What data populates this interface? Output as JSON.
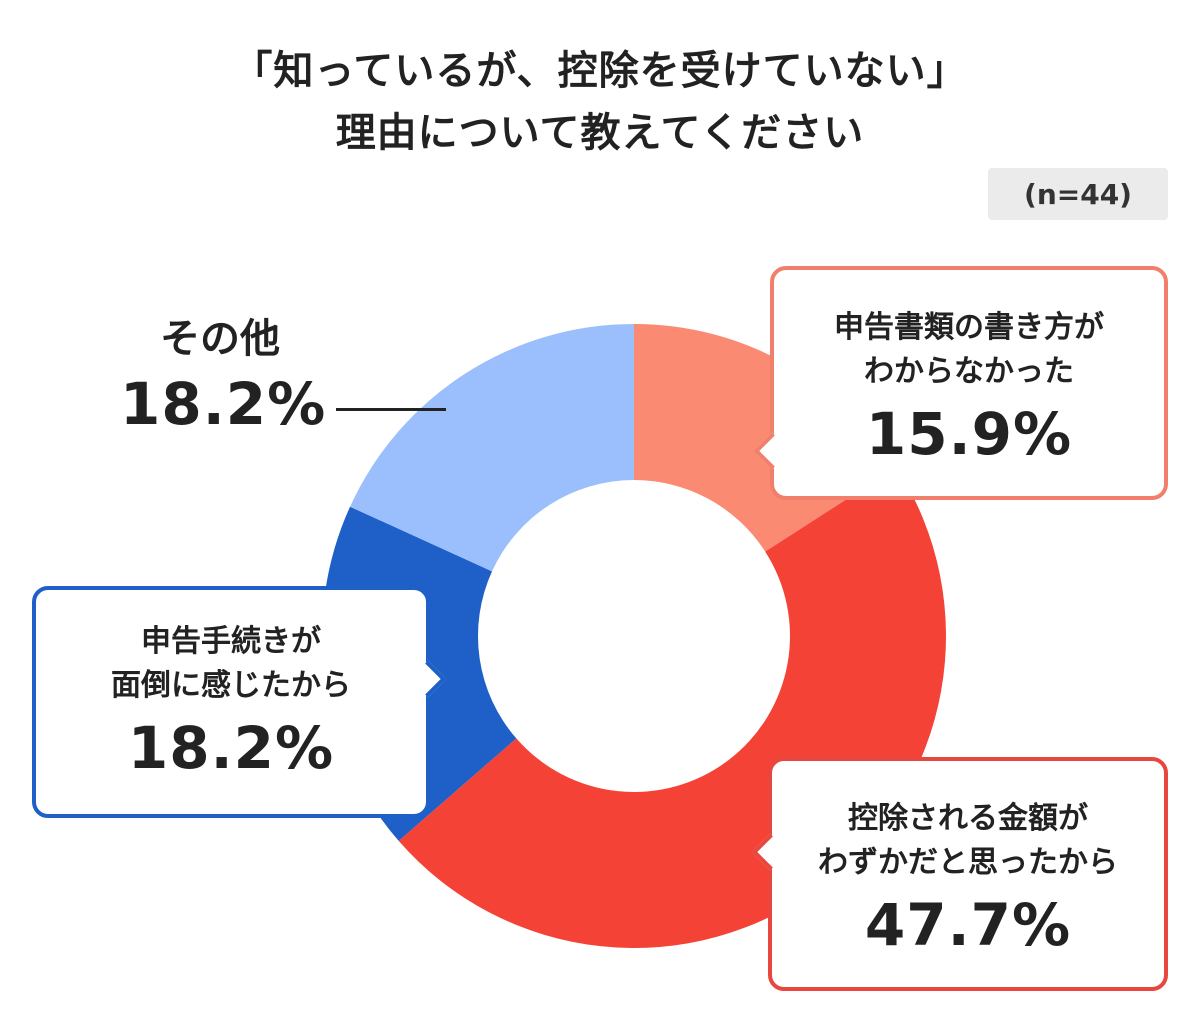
{
  "title_lines": [
    "「知っているが、控除を受けていない」",
    "理由について教えてください"
  ],
  "sample_size": "(n=44)",
  "chart_data": {
    "type": "pie",
    "title": "「知っているが、控除を受けていない」理由について教えてください",
    "slices": [
      {
        "label": "申告書類の書き方がわからなかった",
        "value": 15.9,
        "display": "15.9%",
        "color": "#fb8a72",
        "label_lines": [
          "申告書類の書き方が",
          "わからなかった"
        ]
      },
      {
        "label": "控除される金額がわずかだと思ったから",
        "value": 47.7,
        "display": "47.7%",
        "color": "#f44336",
        "label_lines": [
          "控除される金額が",
          "わずかだと思ったから"
        ]
      },
      {
        "label": "申告手続きが面倒に感じたから",
        "value": 18.2,
        "display": "18.2%",
        "color": "#1e60c8",
        "label_lines": [
          "申告手続きが",
          "面倒に感じたから"
        ]
      },
      {
        "label": "その他",
        "value": 18.2,
        "display": "18.2%",
        "color": "#9abffc",
        "label_lines": [
          "その他"
        ]
      }
    ]
  }
}
